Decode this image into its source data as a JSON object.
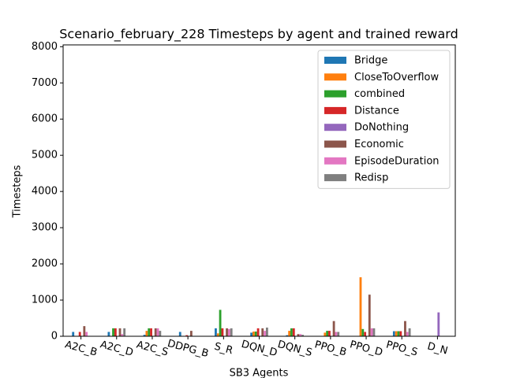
{
  "chart_data": {
    "type": "bar",
    "title": "Scenario_february_228 Timesteps by agent and trained reward",
    "x_label": "SB3 Agents",
    "y_label": "Timesteps",
    "categories": [
      "A2C_B",
      "A2C_D",
      "A2C_S",
      "DDPG_B",
      "S_R",
      "DQN_D",
      "DQN_S",
      "PPO_B",
      "PPO_D",
      "PPO_S",
      "D_N"
    ],
    "series": [
      {
        "name": "Bridge",
        "color": "#1f77b4",
        "values": [
          120,
          120,
          40,
          120,
          220,
          100,
          30,
          0,
          0,
          140,
          0
        ]
      },
      {
        "name": "CloseToOverflow",
        "color": "#ff7f0e",
        "values": [
          0,
          0,
          150,
          0,
          80,
          130,
          150,
          100,
          1630,
          140,
          0
        ]
      },
      {
        "name": "combined",
        "color": "#2ca02c",
        "values": [
          0,
          220,
          220,
          0,
          730,
          130,
          220,
          150,
          200,
          140,
          0
        ]
      },
      {
        "name": "Distance",
        "color": "#d62728",
        "values": [
          120,
          220,
          220,
          30,
          220,
          220,
          220,
          150,
          120,
          140,
          0
        ]
      },
      {
        "name": "DoNothing",
        "color": "#9467bd",
        "values": [
          0,
          0,
          0,
          0,
          0,
          0,
          0,
          0,
          0,
          0,
          660
        ]
      },
      {
        "name": "Economic",
        "color": "#8c564b",
        "values": [
          280,
          220,
          220,
          150,
          220,
          220,
          60,
          420,
          1150,
          420,
          0
        ]
      },
      {
        "name": "EpisodeDuration",
        "color": "#e377c2",
        "values": [
          120,
          60,
          220,
          0,
          200,
          150,
          60,
          120,
          220,
          120,
          0
        ]
      },
      {
        "name": "Redisp",
        "color": "#7f7f7f",
        "values": [
          0,
          220,
          150,
          0,
          220,
          240,
          40,
          120,
          220,
          220,
          0
        ]
      }
    ],
    "ylim": [
      0,
      8050
    ],
    "yticks": [
      0,
      1000,
      2000,
      3000,
      4000,
      5000,
      6000,
      7000,
      8000
    ],
    "legend": "upper right"
  }
}
